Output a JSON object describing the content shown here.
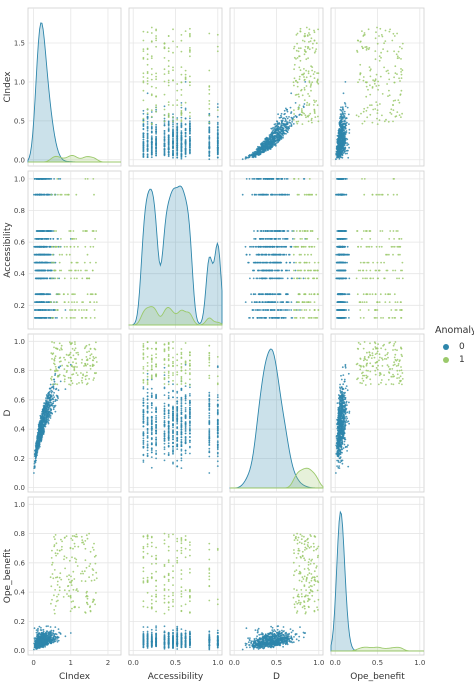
{
  "chart_data": {
    "type": "scatter",
    "kind": "pairplot",
    "hue": "Anomaly",
    "variables": [
      "CIndex",
      "Accessibility",
      "D",
      "Ope_benefit"
    ],
    "axis_ticks": {
      "CIndex": [
        0,
        1,
        2
      ],
      "Accessibility": [
        0.0,
        0.5,
        1.0
      ],
      "D": [
        0.0,
        0.5,
        1.0
      ],
      "Ope_benefit": [
        0.0,
        0.5,
        1.0
      ]
    },
    "y_ticks": {
      "CIndex": [
        "0.0",
        "0.5",
        "1.0",
        "1.5"
      ],
      "Accessibility": [
        "0.2",
        "0.4",
        "0.6",
        "0.8",
        "1.0"
      ],
      "D": [
        "0.0",
        "0.2",
        "0.4",
        "0.6",
        "0.8",
        "1.0"
      ],
      "Ope_benefit": [
        "0.0",
        "0.2",
        "0.4",
        "0.6",
        "0.8",
        "1.0"
      ]
    },
    "x_tick_labels": {
      "CIndex": [
        "0",
        "1",
        "2"
      ],
      "Accessibility": [
        "0.0",
        "0.5",
        "1.0"
      ],
      "D": [
        "0.0",
        "0.5",
        "1.0"
      ],
      "Ope_benefit": [
        "0.0",
        "0.5",
        "1.0"
      ]
    },
    "accessibility_levels": [
      0.12,
      0.17,
      0.22,
      0.27,
      0.37,
      0.42,
      0.47,
      0.52,
      0.57,
      0.62,
      0.67,
      0.9,
      1.0
    ],
    "legend": {
      "title": "Anomaly",
      "entries": [
        {
          "label": "0",
          "color": "#2e86ab"
        },
        {
          "label": "1",
          "color": "#9bc96b"
        }
      ],
      "placement": "right"
    },
    "grid": true
  }
}
